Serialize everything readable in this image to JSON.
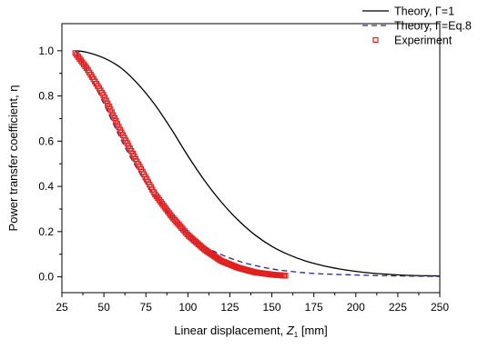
{
  "chart_data": {
    "type": "line",
    "xlabel": {
      "prefix": "Linear displacement, ",
      "symbol": "Z",
      "subscript": "1",
      "suffix": " [mm]"
    },
    "ylabel": "Power transfer coefficient, η",
    "xlim": [
      25,
      250
    ],
    "ylim": [
      -0.07,
      1.12
    ],
    "xticks": [
      25,
      50,
      75,
      100,
      125,
      150,
      175,
      200,
      225,
      250
    ],
    "xtick_labels": [
      "25",
      "50",
      "75",
      "100",
      "125",
      "150",
      "175",
      "200",
      "225",
      "250"
    ],
    "yticks": [
      0.0,
      0.2,
      0.4,
      0.6,
      0.8,
      1.0
    ],
    "ytick_labels": [
      "0.0",
      "0.2",
      "0.4",
      "0.6",
      "0.8",
      "1.0"
    ],
    "grid": false,
    "legend_position": "top-right",
    "series": [
      {
        "name": "Theory, Γ=1",
        "style": "solid",
        "color": "#000000",
        "x": [
          33,
          40,
          50,
          60,
          70,
          80,
          90,
          100,
          110,
          120,
          130,
          140,
          150,
          160,
          170,
          180,
          190,
          200,
          210,
          220,
          230,
          240,
          250
        ],
        "y": [
          1.0,
          0.993,
          0.968,
          0.925,
          0.855,
          0.765,
          0.655,
          0.535,
          0.425,
          0.33,
          0.25,
          0.185,
          0.135,
          0.098,
          0.07,
          0.05,
          0.035,
          0.024,
          0.016,
          0.011,
          0.007,
          0.005,
          0.004
        ]
      },
      {
        "name": "Theory, Γ=Eq.8",
        "style": "dashed",
        "color": "#2a2a8c",
        "x": [
          33,
          40,
          50,
          60,
          70,
          80,
          90,
          100,
          110,
          120,
          130,
          140,
          150,
          160,
          175,
          200,
          225,
          250
        ],
        "y": [
          1.0,
          0.915,
          0.765,
          0.61,
          0.475,
          0.36,
          0.265,
          0.19,
          0.135,
          0.098,
          0.07,
          0.05,
          0.035,
          0.025,
          0.015,
          0.008,
          0.004,
          0.002
        ]
      },
      {
        "name": "Experiment",
        "style": "markers",
        "color": "#e02020",
        "x": [
          33,
          40,
          50,
          60,
          70,
          80,
          90,
          100,
          110,
          120,
          130,
          140,
          150,
          158
        ],
        "y": [
          0.99,
          0.92,
          0.8,
          0.645,
          0.505,
          0.37,
          0.27,
          0.185,
          0.12,
          0.07,
          0.04,
          0.02,
          0.01,
          0.005
        ]
      }
    ]
  }
}
